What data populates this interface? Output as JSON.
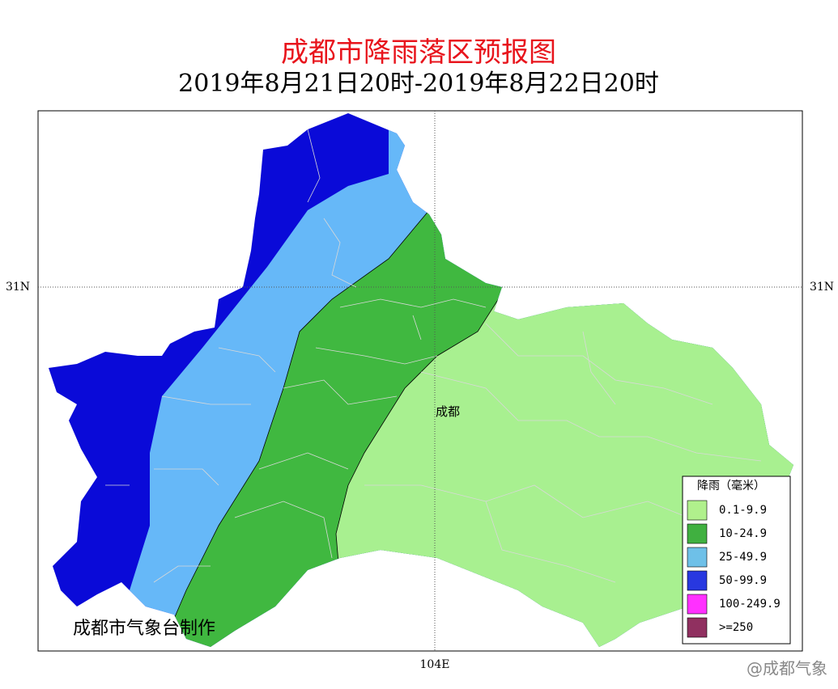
{
  "header": {
    "title": "成都市降雨落区预报图",
    "subtitle": "2019年8月21日20时-2019年8月22日20时"
  },
  "map": {
    "lat_label": "31N",
    "lon_label": "104E",
    "city": "成都"
  },
  "legend": {
    "title": "降雨（毫米）",
    "items": [
      {
        "label": "0.1-9.9",
        "color": "#b0f08c"
      },
      {
        "label": "10-24.9",
        "color": "#40b040"
      },
      {
        "label": "25-49.9",
        "color": "#6ec0e8"
      },
      {
        "label": "50-99.9",
        "color": "#2838e0"
      },
      {
        "label": "100-249.9",
        "color": "#ff30ff"
      },
      {
        "label": ">=250",
        "color": "#903060"
      }
    ]
  },
  "credit": "成都市气象台制作",
  "watermark": "@成都气象"
}
